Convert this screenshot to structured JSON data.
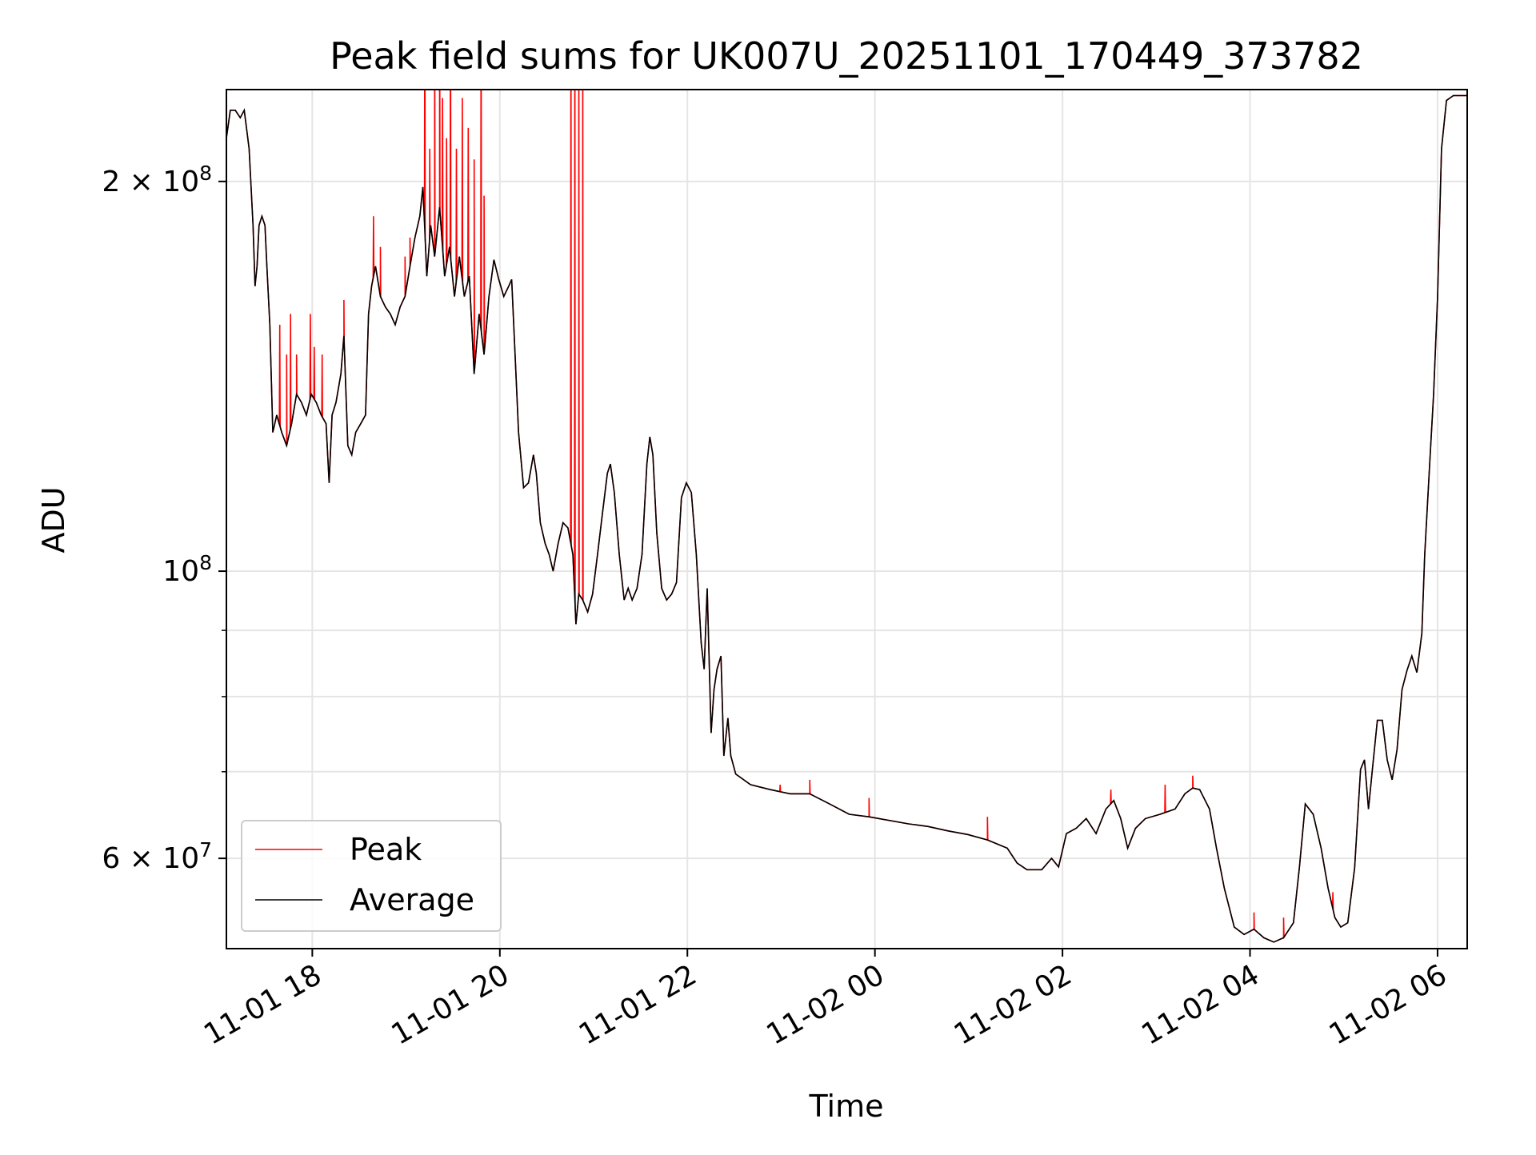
{
  "chart_data": {
    "type": "line",
    "title": "Peak field sums for UK007U_20251101_170449_373782",
    "xlabel": "Time",
    "ylabel": "ADU",
    "x_units": "hours since 11-01 00:00",
    "y_units": "ADU (millions)",
    "yscale": "log",
    "xlim": [
      17.084,
      30.316
    ],
    "ylim": [
      51.1,
      235.5
    ],
    "grid": true,
    "legend_placement": "lower-left",
    "x_ticks": [
      {
        "value": 18,
        "label": "11-01 18"
      },
      {
        "value": 20,
        "label": "11-01 20"
      },
      {
        "value": 22,
        "label": "11-01 22"
      },
      {
        "value": 24,
        "label": "11-02 00"
      },
      {
        "value": 26,
        "label": "11-02 02"
      },
      {
        "value": 28,
        "label": "11-02 04"
      },
      {
        "value": 30,
        "label": "11-02 06"
      }
    ],
    "y_ticks": [
      {
        "value": 200,
        "base": "2 × 10",
        "exp": "8"
      },
      {
        "value": 100,
        "base": "10",
        "exp": "8"
      },
      {
        "value": 60,
        "base": "6 × 10",
        "exp": "7"
      }
    ],
    "y_minor_ticks": [
      70,
      80,
      90
    ],
    "series": [
      {
        "name": "Peak",
        "color": "#ff0000",
        "extra_points": [
          [
            17.653,
            155
          ],
          [
            17.726,
            147
          ],
          [
            17.768,
            158
          ],
          [
            17.832,
            147
          ],
          [
            17.979,
            158
          ],
          [
            18.021,
            149
          ],
          [
            18.105,
            147
          ],
          [
            18.337,
            162
          ],
          [
            18.653,
            188
          ],
          [
            18.726,
            178
          ],
          [
            18.989,
            175
          ],
          [
            19.042,
            181
          ],
          [
            19.2,
            300
          ],
          [
            19.253,
            212
          ],
          [
            19.305,
            300
          ],
          [
            19.358,
            300
          ],
          [
            19.389,
            232
          ],
          [
            19.432,
            216
          ],
          [
            19.474,
            300
          ],
          [
            19.537,
            212
          ],
          [
            19.6,
            232
          ],
          [
            19.663,
            220
          ],
          [
            19.726,
            208
          ],
          [
            19.8,
            300
          ],
          [
            19.832,
            195
          ],
          [
            20.758,
            300
          ],
          [
            20.8,
            300
          ],
          [
            20.842,
            300
          ],
          [
            20.884,
            300
          ],
          [
            22.989,
            68.4
          ],
          [
            23.305,
            69
          ],
          [
            23.937,
            66.8
          ],
          [
            25.2,
            64.6
          ],
          [
            26.516,
            67.8
          ],
          [
            27.095,
            68.4
          ],
          [
            27.389,
            69.5
          ],
          [
            28.042,
            54.5
          ],
          [
            28.358,
            54
          ],
          [
            28.884,
            56.5
          ]
        ]
      },
      {
        "name": "Average",
        "color": "#000000",
        "points": [
          [
            17.084,
            216
          ],
          [
            17.126,
            227
          ],
          [
            17.179,
            227
          ],
          [
            17.232,
            224
          ],
          [
            17.274,
            227
          ],
          [
            17.326,
            212
          ],
          [
            17.368,
            185
          ],
          [
            17.389,
            166
          ],
          [
            17.411,
            172
          ],
          [
            17.432,
            185
          ],
          [
            17.463,
            188
          ],
          [
            17.495,
            185
          ],
          [
            17.516,
            172
          ],
          [
            17.547,
            155
          ],
          [
            17.579,
            128
          ],
          [
            17.621,
            132
          ],
          [
            17.674,
            128
          ],
          [
            17.726,
            125
          ],
          [
            17.779,
            130
          ],
          [
            17.832,
            137
          ],
          [
            17.884,
            135
          ],
          [
            17.937,
            132
          ],
          [
            17.989,
            137
          ],
          [
            18.042,
            135
          ],
          [
            18.095,
            132
          ],
          [
            18.147,
            130
          ],
          [
            18.179,
            117
          ],
          [
            18.211,
            132
          ],
          [
            18.253,
            135
          ],
          [
            18.305,
            142
          ],
          [
            18.337,
            152
          ],
          [
            18.379,
            125
          ],
          [
            18.421,
            123
          ],
          [
            18.463,
            128
          ],
          [
            18.516,
            130
          ],
          [
            18.568,
            132
          ],
          [
            18.6,
            158
          ],
          [
            18.632,
            166
          ],
          [
            18.674,
            172
          ],
          [
            18.726,
            163
          ],
          [
            18.779,
            160
          ],
          [
            18.832,
            158
          ],
          [
            18.884,
            155
          ],
          [
            18.937,
            160
          ],
          [
            18.989,
            163
          ],
          [
            19.042,
            172
          ],
          [
            19.095,
            181
          ],
          [
            19.147,
            188
          ],
          [
            19.179,
            198
          ],
          [
            19.221,
            169
          ],
          [
            19.263,
            185
          ],
          [
            19.305,
            175
          ],
          [
            19.358,
            191
          ],
          [
            19.411,
            169
          ],
          [
            19.463,
            178
          ],
          [
            19.516,
            163
          ],
          [
            19.568,
            175
          ],
          [
            19.621,
            163
          ],
          [
            19.674,
            169
          ],
          [
            19.726,
            142
          ],
          [
            19.779,
            158
          ],
          [
            19.832,
            147
          ],
          [
            19.884,
            163
          ],
          [
            19.937,
            174
          ],
          [
            19.989,
            168
          ],
          [
            20.042,
            163
          ],
          [
            20.095,
            166
          ],
          [
            20.126,
            168
          ],
          [
            20.168,
            144
          ],
          [
            20.2,
            128
          ],
          [
            20.253,
            116
          ],
          [
            20.305,
            117
          ],
          [
            20.358,
            123
          ],
          [
            20.389,
            119
          ],
          [
            20.432,
            109
          ],
          [
            20.484,
            105
          ],
          [
            20.526,
            103
          ],
          [
            20.568,
            100
          ],
          [
            20.621,
            105
          ],
          [
            20.674,
            109
          ],
          [
            20.726,
            108
          ],
          [
            20.779,
            103
          ],
          [
            20.811,
            91
          ],
          [
            20.842,
            96
          ],
          [
            20.884,
            95
          ],
          [
            20.937,
            93
          ],
          [
            20.989,
            96
          ],
          [
            21.042,
            103
          ],
          [
            21.095,
            111
          ],
          [
            21.147,
            119
          ],
          [
            21.179,
            121
          ],
          [
            21.221,
            115
          ],
          [
            21.274,
            103
          ],
          [
            21.326,
            95
          ],
          [
            21.368,
            97
          ],
          [
            21.411,
            95
          ],
          [
            21.463,
            97
          ],
          [
            21.516,
            103
          ],
          [
            21.568,
            121
          ],
          [
            21.6,
            127
          ],
          [
            21.632,
            123
          ],
          [
            21.674,
            107
          ],
          [
            21.726,
            97
          ],
          [
            21.779,
            95
          ],
          [
            21.832,
            96
          ],
          [
            21.884,
            98
          ],
          [
            21.937,
            114
          ],
          [
            21.989,
            117
          ],
          [
            22.042,
            115
          ],
          [
            22.095,
            103
          ],
          [
            22.147,
            88
          ],
          [
            22.179,
            84
          ],
          [
            22.211,
            97
          ],
          [
            22.253,
            75
          ],
          [
            22.284,
            81
          ],
          [
            22.316,
            84
          ],
          [
            22.358,
            86
          ],
          [
            22.389,
            72
          ],
          [
            22.432,
            77
          ],
          [
            22.463,
            72
          ],
          [
            22.516,
            69.7
          ],
          [
            22.674,
            68.4
          ],
          [
            22.884,
            67.8
          ],
          [
            23.095,
            67.3
          ],
          [
            23.305,
            67.3
          ],
          [
            23.516,
            66.1
          ],
          [
            23.726,
            64.9
          ],
          [
            23.937,
            64.6
          ],
          [
            24.147,
            64.2
          ],
          [
            24.358,
            63.8
          ],
          [
            24.568,
            63.5
          ],
          [
            24.779,
            63.0
          ],
          [
            24.989,
            62.6
          ],
          [
            25.2,
            62.0
          ],
          [
            25.411,
            61.1
          ],
          [
            25.516,
            59.5
          ],
          [
            25.621,
            58.8
          ],
          [
            25.779,
            58.8
          ],
          [
            25.884,
            60
          ],
          [
            25.958,
            59.1
          ],
          [
            26.042,
            62.7
          ],
          [
            26.147,
            63.3
          ],
          [
            26.253,
            64.4
          ],
          [
            26.358,
            62.7
          ],
          [
            26.463,
            65.5
          ],
          [
            26.547,
            66.5
          ],
          [
            26.621,
            64.4
          ],
          [
            26.695,
            61.1
          ],
          [
            26.779,
            63.3
          ],
          [
            26.884,
            64.4
          ],
          [
            27.042,
            64.9
          ],
          [
            27.2,
            65.5
          ],
          [
            27.305,
            67.3
          ],
          [
            27.389,
            68
          ],
          [
            27.463,
            67.8
          ],
          [
            27.568,
            65.5
          ],
          [
            27.642,
            61.1
          ],
          [
            27.726,
            56.9
          ],
          [
            27.832,
            53.1
          ],
          [
            27.937,
            52.4
          ],
          [
            28.042,
            52.9
          ],
          [
            28.147,
            52.1
          ],
          [
            28.253,
            51.7
          ],
          [
            28.358,
            52.1
          ],
          [
            28.463,
            53.5
          ],
          [
            28.526,
            59
          ],
          [
            28.589,
            66.1
          ],
          [
            28.674,
            64.9
          ],
          [
            28.758,
            61.1
          ],
          [
            28.832,
            56.9
          ],
          [
            28.905,
            54
          ],
          [
            28.968,
            53.1
          ],
          [
            29.042,
            53.5
          ],
          [
            29.116,
            59
          ],
          [
            29.179,
            70.3
          ],
          [
            29.221,
            71.5
          ],
          [
            29.263,
            65.5
          ],
          [
            29.305,
            70.3
          ],
          [
            29.358,
            76.7
          ],
          [
            29.411,
            76.7
          ],
          [
            29.463,
            71.5
          ],
          [
            29.516,
            69
          ],
          [
            29.568,
            72.8
          ],
          [
            29.621,
            81
          ],
          [
            29.674,
            83.8
          ],
          [
            29.726,
            86
          ],
          [
            29.779,
            83.5
          ],
          [
            29.832,
            89.5
          ],
          [
            29.863,
            103
          ],
          [
            29.916,
            121
          ],
          [
            29.958,
            137
          ],
          [
            30.0,
            163
          ],
          [
            30.042,
            212
          ],
          [
            30.095,
            231
          ],
          [
            30.168,
            233
          ],
          [
            30.316,
            233
          ]
        ]
      }
    ]
  }
}
